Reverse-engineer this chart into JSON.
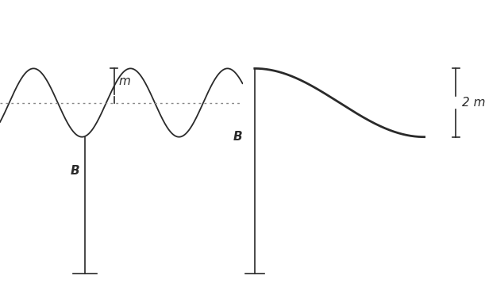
{
  "bg_color": "#ffffff",
  "line_color": "#2a2a2a",
  "dotted_color": "#888888",
  "label_m": "m",
  "label_b_left": "B",
  "label_b_right": "B",
  "label_2m": "2 m",
  "font_size": 11,
  "font_weight": "bold",
  "sine_linewidth": 1.3,
  "bracket_linewidth": 1.2,
  "sigmoid_linewidth": 2.0
}
